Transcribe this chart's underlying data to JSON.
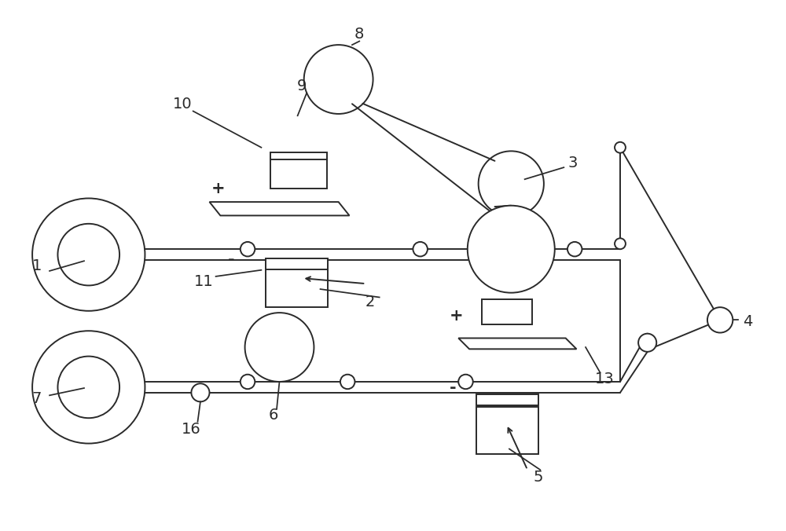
{
  "bg_color": "#ffffff",
  "line_color": "#2a2a2a",
  "line_width": 1.4,
  "figsize": [
    10.0,
    6.76
  ],
  "dpi": 100
}
